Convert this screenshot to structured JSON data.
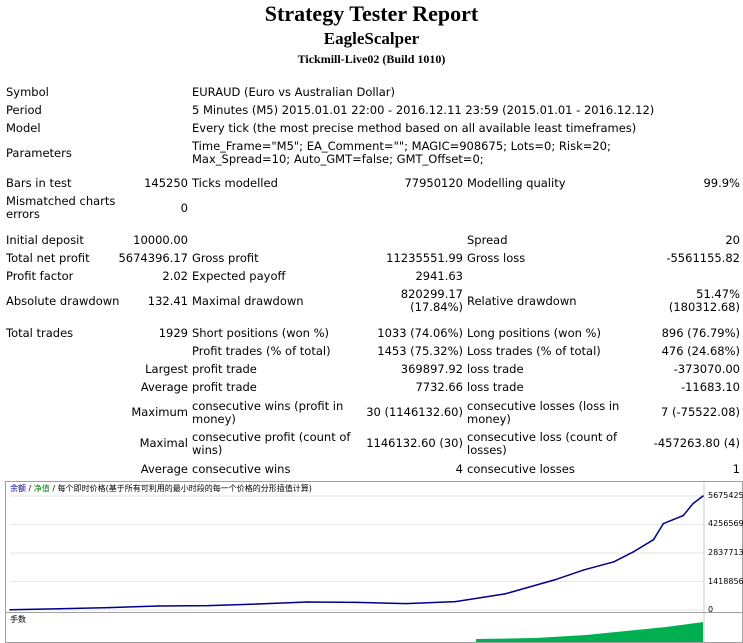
{
  "header": {
    "title": "Strategy Tester Report",
    "expert": "EagleScalper",
    "server": "Tickmill-Live02 (Build 1010)"
  },
  "info": {
    "symbol_label": "Symbol",
    "symbol_value": "EURAUD (Euro vs Australian Dollar)",
    "period_label": "Period",
    "period_value": "5 Minutes (M5) 2015.01.01 22:00 - 2016.12.11 23:59 (2015.01.01 - 2016.12.12)",
    "model_label": "Model",
    "model_value": "Every tick (the most precise method based on all available least timeframes)",
    "parameters_label": "Parameters",
    "parameters_value": "Time_Frame=\"M5\"; EA_Comment=\"\"; MAGIC=908675; Lots=0; Risk=20; Max_Spread=10; Auto_GMT=false; GMT_Offset=0;"
  },
  "stats": {
    "bars_label": "Bars in test",
    "bars_value": "145250",
    "ticks_label": "Ticks modelled",
    "ticks_value": "77950120",
    "quality_label": "Modelling quality",
    "quality_value": "99.9%",
    "mismatch_label": "Mismatched charts errors",
    "mismatch_value": "0",
    "deposit_label": "Initial deposit",
    "deposit_value": "10000.00",
    "spread_label": "Spread",
    "spread_value": "20",
    "net_label": "Total net profit",
    "net_value": "5674396.17",
    "gprofit_label": "Gross profit",
    "gprofit_value": "11235551.99",
    "gloss_label": "Gross loss",
    "gloss_value": "-5561155.82",
    "pf_label": "Profit factor",
    "pf_value": "2.02",
    "payoff_label": "Expected payoff",
    "payoff_value": "2941.63",
    "absdd_label": "Absolute drawdown",
    "absdd_value": "132.41",
    "maxdd_label": "Maximal drawdown",
    "maxdd_value": "820299.17 (17.84%)",
    "reldd_label": "Relative drawdown",
    "reldd_value": "51.47% (180312.68)",
    "trades_label": "Total trades",
    "trades_value": "1929",
    "short_label": "Short positions (won %)",
    "short_value": "1033 (74.06%)",
    "long_label": "Long positions (won %)",
    "long_value": "896 (76.79%)",
    "ptrades_label": "Profit trades (% of total)",
    "ptrades_value": "1453 (75.32%)",
    "ltrades_label": "Loss trades (% of total)",
    "ltrades_value": "476 (24.68%)",
    "largest_label": "Largest",
    "largest_profit_label": "profit trade",
    "largest_profit_value": "369897.92",
    "largest_loss_label": "loss trade",
    "largest_loss_value": "-373070.00",
    "average_label": "Average",
    "average_profit_label": "profit trade",
    "average_profit_value": "7732.66",
    "average_loss_label": "loss trade",
    "average_loss_value": "-11683.10",
    "maximum_label": "Maximum",
    "max_wins_label": "consecutive wins (profit in money)",
    "max_wins_value": "30 (1146132.60)",
    "max_losses_label": "consecutive losses (loss in money)",
    "max_losses_value": "7 (-75522.08)",
    "maximal_label": "Maximal",
    "maximal_profit_label": "consecutive profit (count of wins)",
    "maximal_profit_value": "1146132.60 (30)",
    "maximal_loss_label": "consecutive loss (count of losses)",
    "maximal_loss_value": "-457263.80 (4)",
    "avg_cons_label": "Average",
    "avg_cons_wins_label": "consecutive wins",
    "avg_cons_wins_value": "4",
    "avg_cons_losses_label": "consecutive losses",
    "avg_cons_losses_value": "1"
  },
  "chart": {
    "legend_balance": "余额",
    "legend_sep1": "/",
    "legend_equity": "净值",
    "legend_sep2": "/",
    "legend_note": "每个即时价格(基于所有可利用的最小时段的每一个价格的分形插值计算)",
    "volume_label": "手数",
    "line_color": "#00008b",
    "volume_color": "#00b050"
  },
  "chart_data": {
    "type": "line",
    "y_ticks": [
      0,
      1418856,
      2837713,
      4256569,
      5675425
    ],
    "y_tick_labels": [
      "0",
      "1418856",
      "2837713",
      "4256569",
      "5675425"
    ],
    "ylim": [
      0,
      5675425
    ],
    "x": [
      0,
      50,
      100,
      150,
      200,
      250,
      300,
      350,
      400,
      450,
      500,
      550,
      580,
      610,
      630,
      650,
      660,
      670,
      680,
      690,
      700
    ],
    "series": [
      {
        "values": [
          10000,
          60000,
          120000,
          200000,
          220000,
          300000,
          400000,
          380000,
          320000,
          420000,
          800000,
          1500000,
          2000000,
          2400000,
          2900000,
          3500000,
          4300000,
          4500000,
          4700000,
          5300000,
          5674396
        ]
      }
    ]
  }
}
